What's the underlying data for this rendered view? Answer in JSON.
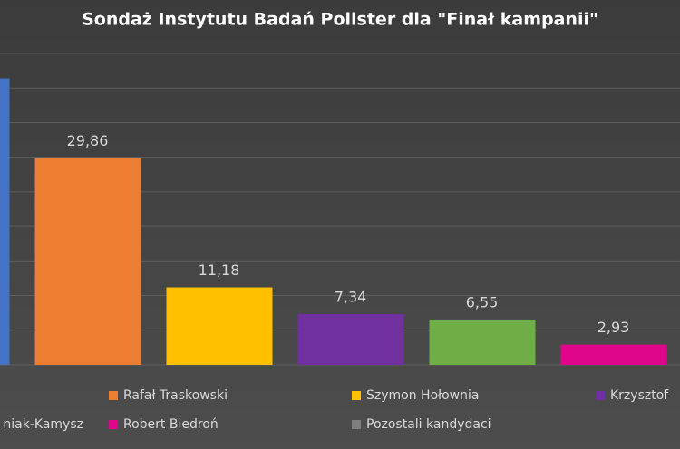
{
  "chart_data": {
    "type": "bar",
    "title": "Sondaż Instytutu Badań Pollster dla \"Finał kampanii\"",
    "categories": [
      null,
      "Rafał Traskowski",
      "Szymon Hołownia",
      "Krzysztof",
      "niak-Kamysz",
      "Robert Biedroń",
      "Pozostali kandydaci"
    ],
    "values": [
      41.4,
      29.86,
      11.18,
      7.34,
      6.55,
      2.93,
      null
    ],
    "value_labels": [
      null,
      "29,86",
      "11,18",
      "7,34",
      "6,55",
      "2,93",
      null
    ],
    "colors": [
      "#4472c4",
      "#ed7d31",
      "#ffc000",
      "#7030a0",
      "#70ad47",
      "#e0068c",
      "#7f7f7f"
    ],
    "ylim": [
      0,
      45
    ],
    "yticks": [
      0,
      5,
      10,
      15,
      20,
      25,
      30,
      35,
      40,
      45
    ],
    "grid": true
  }
}
